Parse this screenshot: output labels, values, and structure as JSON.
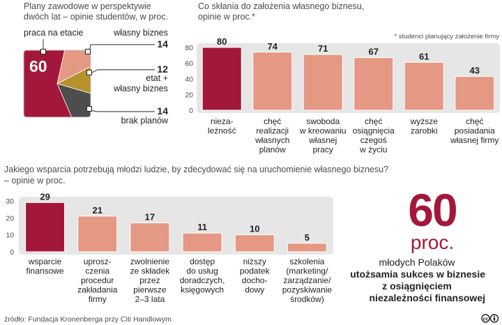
{
  "chart_data": [
    {
      "type": "pie",
      "title": "Plany zawodowe w perspektywie dwóch lat – opinie studentów, w proc.",
      "slices": [
        {
          "label": "praca na etacie",
          "value": 60,
          "color": "#a3183a"
        },
        {
          "label": "własny biznes",
          "value": 14,
          "color": "#e59883"
        },
        {
          "label": "etat + własny biznes",
          "value": 12,
          "color": "#b5922e"
        },
        {
          "label": "brak planów",
          "value": 14,
          "color": "#4d4d4d"
        }
      ]
    },
    {
      "type": "bar",
      "title": "Co skłania do założenia własnego biznesu, opinie w proc.*",
      "note": "* studenci planujący założenie firmy",
      "categories": [
        "nieza-\nleżność",
        "chęć\nrealizacji\nwłasnych\nplanów",
        "swoboda\nw kreowaniu\nwłasnej\npracy",
        "chęć\nosiągnięcia\nczegoś\nw życiu",
        "wyższe\nzarobki",
        "chęć\nposiadania\nwłasnej firmy"
      ],
      "values": [
        80,
        74,
        71,
        67,
        61,
        43
      ],
      "ylim": [
        0,
        80
      ],
      "yticks": [
        0,
        20,
        40,
        60,
        80
      ],
      "grid": false,
      "highlight_color": "#a3183a",
      "bar_color": "#e59883"
    },
    {
      "type": "bar",
      "title": "Jakiego wsparcia potrzebują młodzi ludzie, by zdecydować się na uruchomienie własnego biznesu?",
      "subtitle": "– opinie w proc.",
      "categories": [
        "wsparcie\nfinansowe",
        "uprosz-\nczenia\nprocedur\nzakładania\nfirmy",
        "zwolnienie\nze składek\nprzez\npierwsze\n2–3 lata",
        "dostęp\ndo usług\ndoradczych,\nksięgowych",
        "niższy\npodatek\ndocho-\ndowy",
        "szkolenia\n(marketing/\nzarządzanie/\npozyskiwanie\nśrodków)"
      ],
      "values": [
        29,
        21,
        17,
        11,
        10,
        5
      ],
      "ylim": [
        0,
        30
      ],
      "yticks": [
        0,
        10,
        20,
        30
      ],
      "grid": false,
      "highlight_color": "#a3183a",
      "bar_color": "#e59883"
    }
  ],
  "pie_labels": {
    "praca": "praca na etacie",
    "biznes": "własny biznes",
    "etat_line1": "etat +",
    "etat_line2": "własny biznes",
    "brak": "brak planów"
  },
  "highlight": {
    "number": "60",
    "unit": "proc.",
    "line1": "młodych Polaków",
    "line2": "utożsamia sukces w biznesie",
    "line3": "z osiągnięciem",
    "line4": "niezależności finansowej"
  },
  "source": "źródło: Fundacja Kronenberga przy Citi Handlowym",
  "license_icon": "cc-by-icon"
}
